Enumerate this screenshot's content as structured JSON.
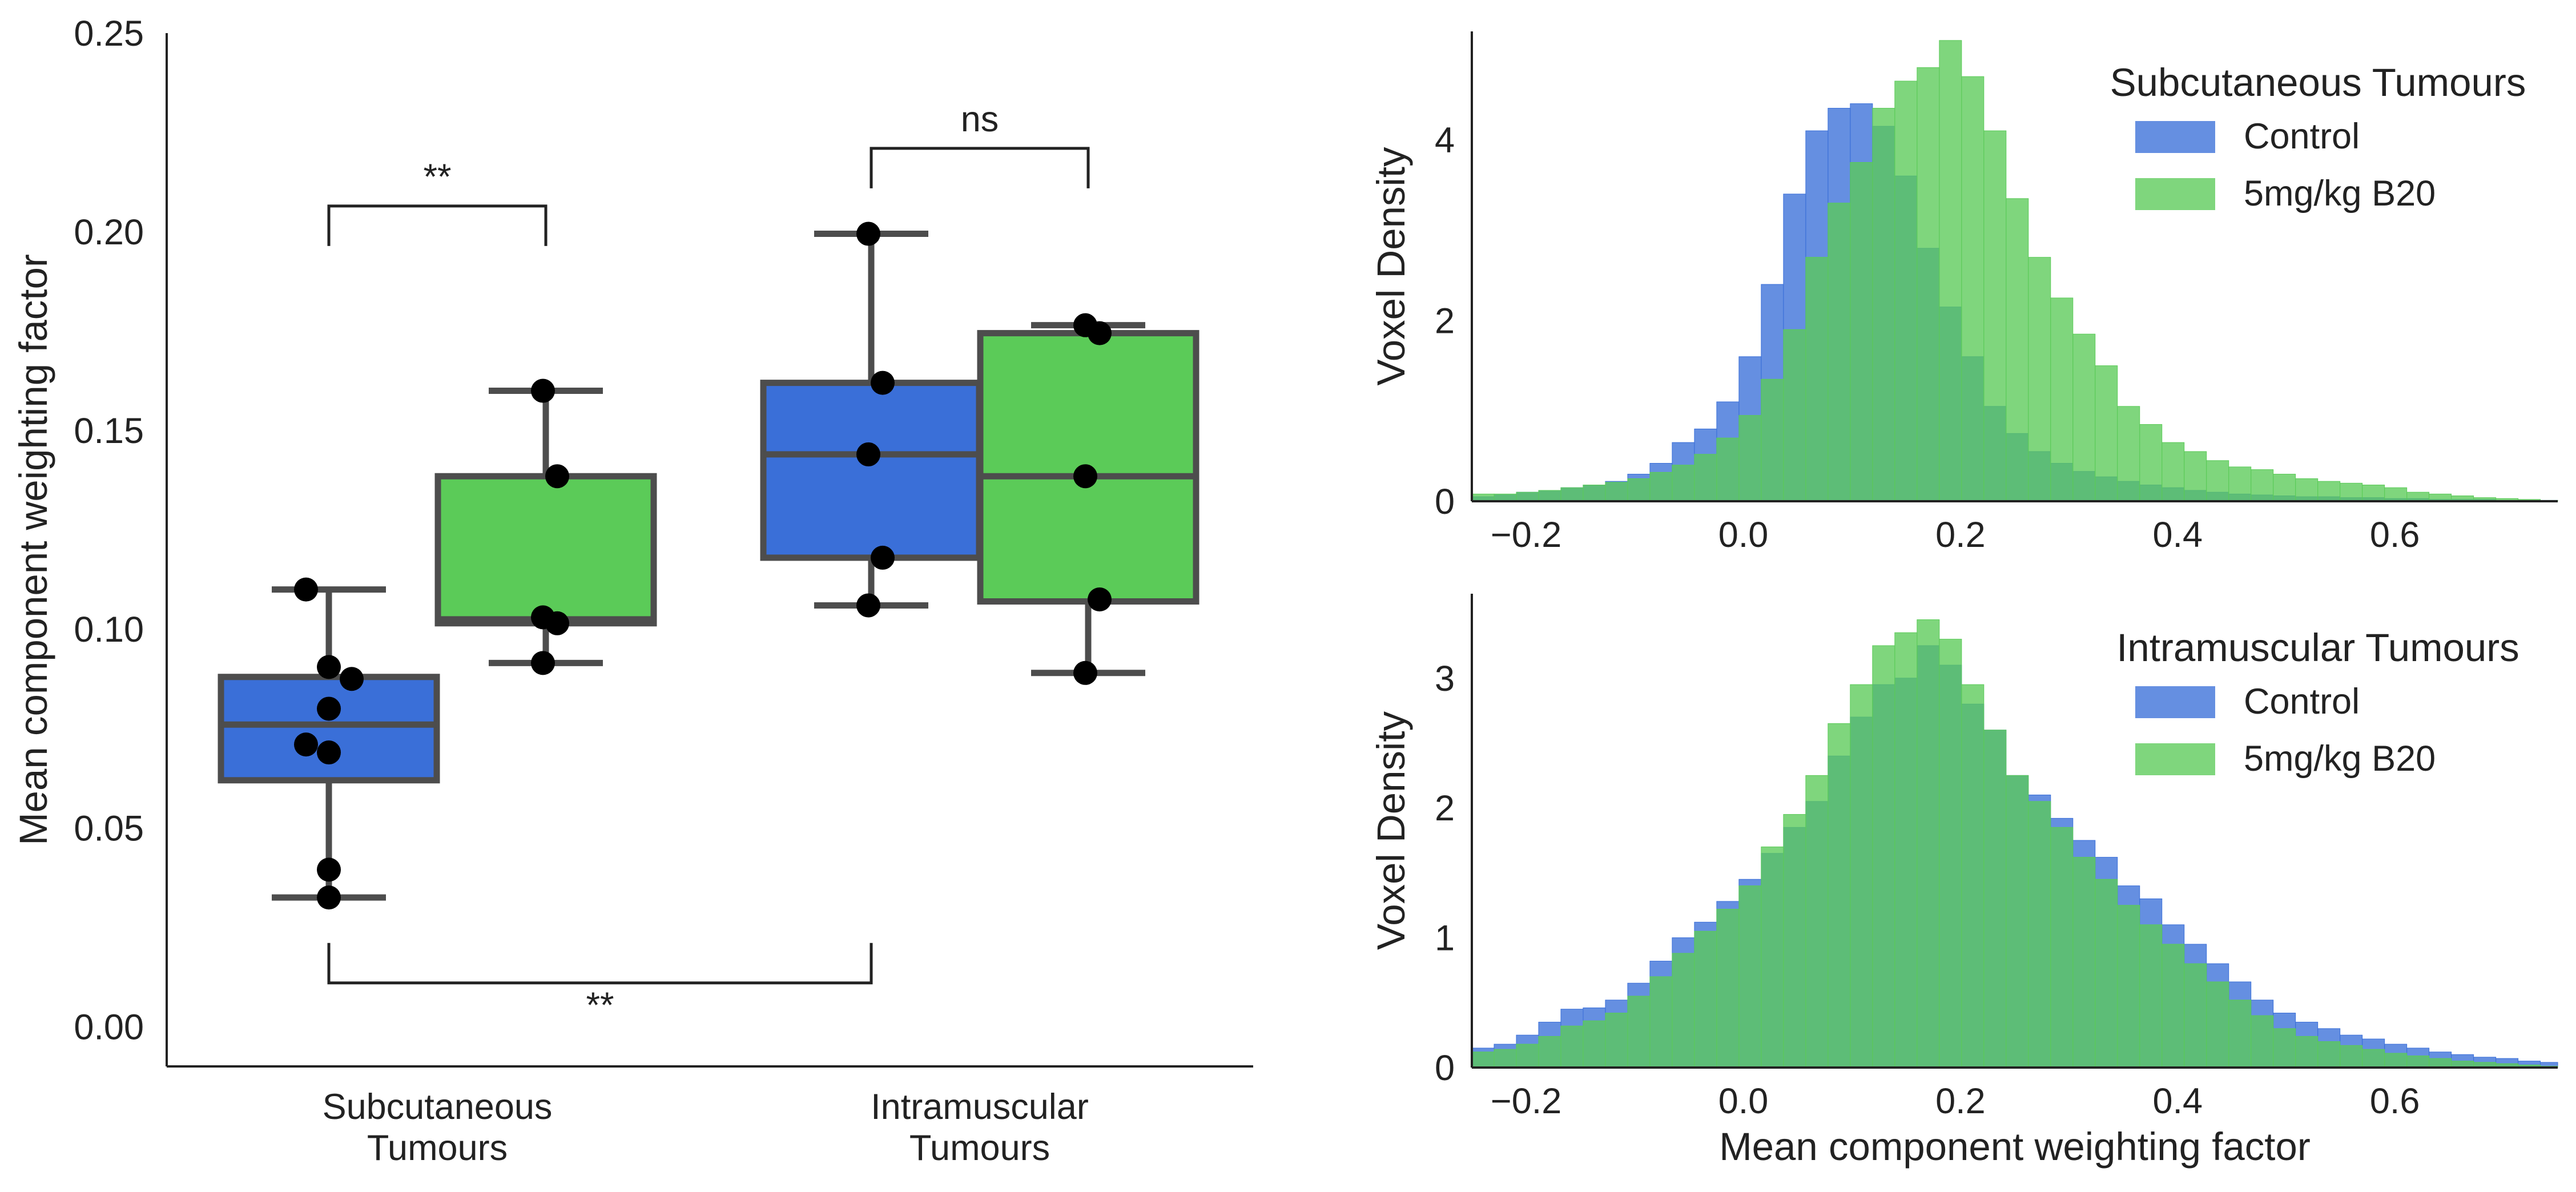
{
  "colors": {
    "control": "#3a6fd8",
    "treated": "#5bcb58",
    "box_edge": "#4d4d4d",
    "point": "#000000",
    "axis": "#222222"
  },
  "chart_data": [
    {
      "type": "box",
      "ylabel": "Mean component weighting factor",
      "ylim": [
        -0.01,
        0.25
      ],
      "yticks": [
        "0.00",
        "0.05",
        "0.10",
        "0.15",
        "0.20",
        "0.25"
      ],
      "categories": [
        "Subcutaneous\nTumours",
        "Intramuscular\nTumours"
      ],
      "category_lines": [
        [
          "Subcutaneous",
          "Tumours"
        ],
        [
          "Intramuscular",
          "Tumours"
        ]
      ],
      "series": [
        {
          "group": "control",
          "boxes": [
            {
              "category": "Subcutaneous\nTumours",
              "whisker_low": 0.0325,
              "q1": 0.062,
              "median": 0.076,
              "q3": 0.088,
              "whisker_high": 0.11,
              "points": [
                0.11,
                0.0905,
                0.0875,
                0.08,
                0.071,
                0.069,
                0.0395,
                0.0325
              ]
            },
            {
              "category": "Intramuscular\nTumours",
              "whisker_low": 0.106,
              "q1": 0.118,
              "median": 0.144,
              "q3": 0.162,
              "whisker_high": 0.1995,
              "points": [
                0.1995,
                0.162,
                0.144,
                0.118,
                0.106
              ]
            }
          ]
        },
        {
          "group": "treated",
          "boxes": [
            {
              "category": "Subcutaneous\nTumours",
              "whisker_low": 0.0915,
              "q1": 0.1015,
              "median": 0.1025,
              "q3": 0.1385,
              "whisker_high": 0.16,
              "points": [
                0.16,
                0.1385,
                0.103,
                0.1015,
                0.0915
              ]
            },
            {
              "category": "Intramuscular\nTumours",
              "whisker_low": 0.089,
              "q1": 0.107,
              "median": 0.1385,
              "q3": 0.1745,
              "whisker_high": 0.1765,
              "points": [
                0.1765,
                0.1745,
                0.1385,
                0.1075,
                0.089
              ]
            }
          ]
        }
      ],
      "annotations": [
        {
          "label": "**",
          "from": [
            0,
            "control"
          ],
          "to": [
            0,
            "treated"
          ],
          "y": 0.2065,
          "position": "above"
        },
        {
          "label": "ns",
          "from": [
            1,
            "control"
          ],
          "to": [
            1,
            "treated"
          ],
          "y": 0.221,
          "position": "above"
        },
        {
          "label": "**",
          "from": [
            0,
            "control"
          ],
          "to": [
            1,
            "control"
          ],
          "y": 0.011,
          "position": "below"
        }
      ]
    },
    {
      "type": "histogram",
      "ylabel": "Voxel Density",
      "xlabel": "",
      "xlim": [
        -0.25,
        0.75
      ],
      "ylim": [
        0,
        5.2
      ],
      "xticks": [
        "−0.2",
        "0.0",
        "0.2",
        "0.4",
        "0.6"
      ],
      "yticks": [
        "0",
        "2",
        "4"
      ],
      "legend_title": "Subcutaneous Tumours",
      "legend_position": "top-right",
      "bin_start": -0.25,
      "bin_width": 0.0205,
      "series": [
        {
          "name": "Control",
          "group": "control",
          "values": [
            0.05,
            0.07,
            0.1,
            0.12,
            0.15,
            0.18,
            0.22,
            0.3,
            0.42,
            0.65,
            0.8,
            1.1,
            1.6,
            2.4,
            3.4,
            4.1,
            4.35,
            4.4,
            4.15,
            3.6,
            2.8,
            2.15,
            1.6,
            1.05,
            0.75,
            0.55,
            0.42,
            0.33,
            0.27,
            0.22,
            0.18,
            0.15,
            0.12,
            0.1,
            0.08,
            0.07,
            0.06,
            0.05,
            0.05,
            0.04,
            0.04,
            0.03,
            0.03,
            0.02,
            0.02,
            0.02,
            0.01,
            0.01,
            0.01
          ]
        },
        {
          "name": "5mg/kg B20",
          "group": "treated",
          "values": [
            0.08,
            0.08,
            0.1,
            0.12,
            0.15,
            0.18,
            0.21,
            0.25,
            0.32,
            0.4,
            0.52,
            0.7,
            0.95,
            1.35,
            1.9,
            2.7,
            3.3,
            3.75,
            4.35,
            4.65,
            4.8,
            5.1,
            4.7,
            4.1,
            3.35,
            2.7,
            2.25,
            1.85,
            1.5,
            1.05,
            0.85,
            0.65,
            0.55,
            0.45,
            0.38,
            0.35,
            0.3,
            0.25,
            0.22,
            0.2,
            0.18,
            0.15,
            0.1,
            0.08,
            0.06,
            0.04,
            0.03,
            0.02,
            0.01
          ]
        }
      ]
    },
    {
      "type": "histogram",
      "ylabel": "Voxel Density",
      "xlabel": "Mean component weighting factor",
      "xlim": [
        -0.25,
        0.75
      ],
      "ylim": [
        0,
        3.65
      ],
      "xticks": [
        "−0.2",
        "0.0",
        "0.2",
        "0.4",
        "0.6"
      ],
      "yticks": [
        "0",
        "1",
        "2",
        "3"
      ],
      "legend_title": "Intramuscular Tumours",
      "legend_position": "top-right",
      "bin_start": -0.25,
      "bin_width": 0.0205,
      "series": [
        {
          "name": "Control",
          "group": "control",
          "values": [
            0.15,
            0.18,
            0.25,
            0.35,
            0.45,
            0.46,
            0.52,
            0.65,
            0.82,
            1.0,
            1.12,
            1.28,
            1.45,
            1.65,
            1.85,
            2.05,
            2.4,
            2.7,
            2.95,
            3.0,
            3.25,
            3.1,
            2.8,
            2.6,
            2.25,
            2.1,
            1.92,
            1.75,
            1.62,
            1.4,
            1.3,
            1.1,
            0.95,
            0.8,
            0.66,
            0.52,
            0.42,
            0.35,
            0.3,
            0.25,
            0.22,
            0.18,
            0.15,
            0.12,
            0.1,
            0.08,
            0.07,
            0.05,
            0.04
          ]
        },
        {
          "name": "5mg/kg B20",
          "group": "treated",
          "values": [
            0.12,
            0.14,
            0.18,
            0.24,
            0.32,
            0.36,
            0.42,
            0.55,
            0.7,
            0.88,
            1.05,
            1.22,
            1.4,
            1.7,
            1.95,
            2.25,
            2.65,
            2.95,
            3.25,
            3.35,
            3.45,
            3.3,
            2.95,
            2.6,
            2.25,
            2.05,
            1.85,
            1.62,
            1.45,
            1.25,
            1.1,
            0.95,
            0.8,
            0.66,
            0.52,
            0.4,
            0.3,
            0.24,
            0.2,
            0.17,
            0.14,
            0.11,
            0.09,
            0.07,
            0.05,
            0.04,
            0.03,
            0.02,
            0.01
          ]
        }
      ]
    }
  ]
}
